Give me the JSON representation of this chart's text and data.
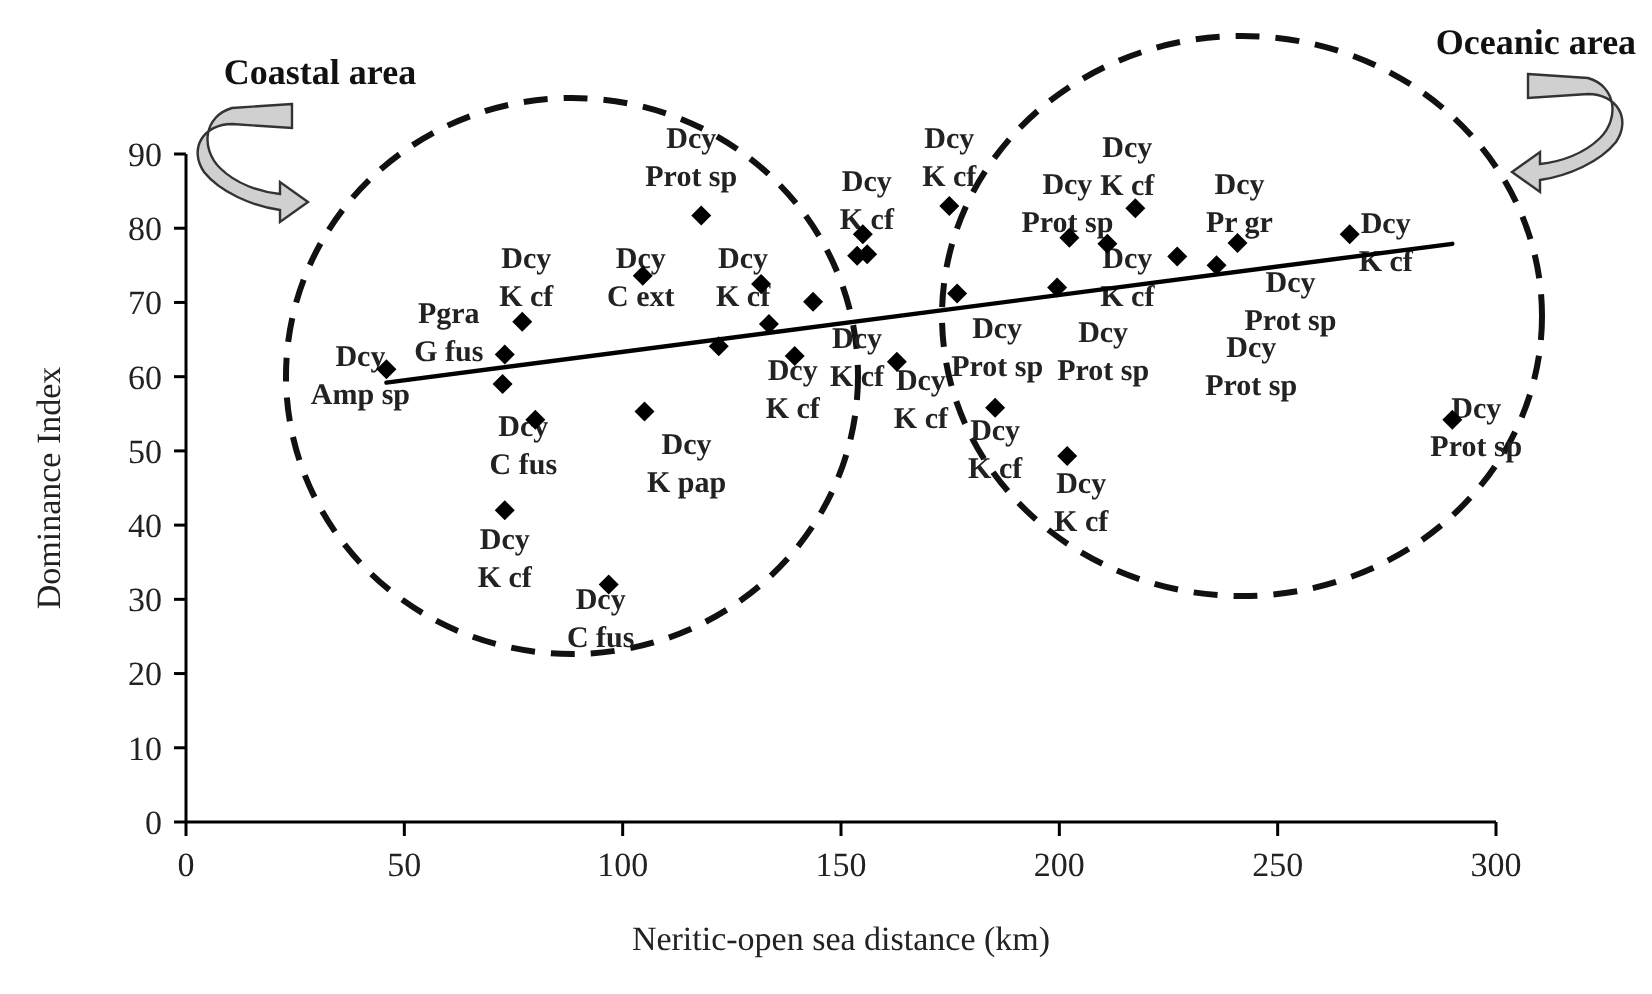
{
  "chart_data": {
    "type": "scatter",
    "xlabel": "Neritic-open sea distance (km)",
    "ylabel": "Dominance Index",
    "xlim": [
      0,
      300
    ],
    "xticks": [
      0,
      50,
      100,
      150,
      200,
      250,
      300
    ],
    "ylim": [
      0,
      90
    ],
    "yticks": [
      0,
      10,
      20,
      30,
      40,
      50,
      60,
      70,
      80,
      90
    ],
    "grid": false,
    "series": [
      {
        "color": "#000000",
        "marker": "diamond",
        "x": [
          45.9,
          77,
          73,
          72.5,
          104.6,
          80,
          105,
          118,
          73,
          96.8,
          131.7,
          143.6,
          133.5,
          122,
          139.4,
          155,
          153.7,
          156,
          174.8,
          162.8,
          176.6,
          185.3,
          201.8,
          202.3,
          199.5,
          211,
          217.4,
          227,
          236,
          240.8,
          266.5,
          290
        ],
        "values": [
          61,
          67.4,
          63,
          59,
          73.6,
          54.2,
          55.3,
          81.7,
          42,
          32,
          72.5,
          70.1,
          67.1,
          64.1,
          62.8,
          79.2,
          76.3,
          76.5,
          83,
          62,
          71.2,
          55.8,
          49.3,
          78.7,
          72,
          77.9,
          82.7,
          76.2,
          75,
          78,
          79.2,
          54.2
        ]
      },
      {
        "type": "line",
        "color": "#000000",
        "x": [
          45.9,
          290
        ],
        "values": [
          59.2,
          77.9
        ]
      }
    ],
    "annotations": [
      "Coastal area",
      "Oceanic area",
      {
        "text": "Dcy\nAmp sp",
        "x": 45.9,
        "y": 61
      },
      {
        "text": "Dcy\nK cf",
        "x": 77,
        "y": 67.4
      },
      {
        "text": "Pgra\nG fus",
        "x": 73,
        "y": 63
      },
      {
        "text": "Dcy\nC ext",
        "x": 104.6,
        "y": 73.6
      },
      {
        "text": "Dcy\nC fus",
        "x": 80,
        "y": 54.2
      },
      {
        "text": "Dcy\nK pap",
        "x": 105,
        "y": 55.3
      },
      {
        "text": "Dcy\nProt sp",
        "x": 118,
        "y": 81.7
      },
      {
        "text": "Dcy\nK cf",
        "x": 73,
        "y": 42
      },
      {
        "text": "Dcy\nC fus",
        "x": 96.8,
        "y": 32
      },
      {
        "text": "Dcy\nK cf",
        "x": 131.7,
        "y": 72.5
      },
      {
        "text": "Dcy\nK cf",
        "x": 155,
        "y": 79.2
      },
      {
        "text": "Dcy\nK cf",
        "x": 174.8,
        "y": 83
      },
      {
        "text": "Dcy\nK cf",
        "x": 143.6,
        "y": 70.1
      },
      {
        "text": "Dcy\nK cf",
        "x": 139.4,
        "y": 62.8
      },
      {
        "text": "Dcy\nK cf",
        "x": 162.8,
        "y": 62
      },
      {
        "text": "Dcy\nProt sp",
        "x": 176.6,
        "y": 71.2
      },
      {
        "text": "Dcy\nProt sp",
        "x": 202.3,
        "y": 78.7
      },
      {
        "text": "Dcy\nK cf",
        "x": 217.4,
        "y": 82.7
      },
      {
        "text": "Dcy\nK cf",
        "x": 211,
        "y": 77.9
      },
      {
        "text": "Dcy\nProt sp",
        "x": 199.5,
        "y": 72
      },
      {
        "text": "Dcy\nK cf",
        "x": 185.3,
        "y": 55.8
      },
      {
        "text": "Dcy\nK cf",
        "x": 201.8,
        "y": 49.3
      },
      {
        "text": "Dcy\nPr gr",
        "x": 240.8,
        "y": 78
      },
      {
        "text": "Dcy\nProt sp",
        "x": 236,
        "y": 75
      },
      {
        "text": "Dcy\nProt sp",
        "x": 227,
        "y": 76.2
      },
      {
        "text": "Dcy\nK cf",
        "x": 266.5,
        "y": 79.2
      },
      {
        "text": "Dcy\nProt sp",
        "x": 290,
        "y": 54.2
      }
    ]
  }
}
